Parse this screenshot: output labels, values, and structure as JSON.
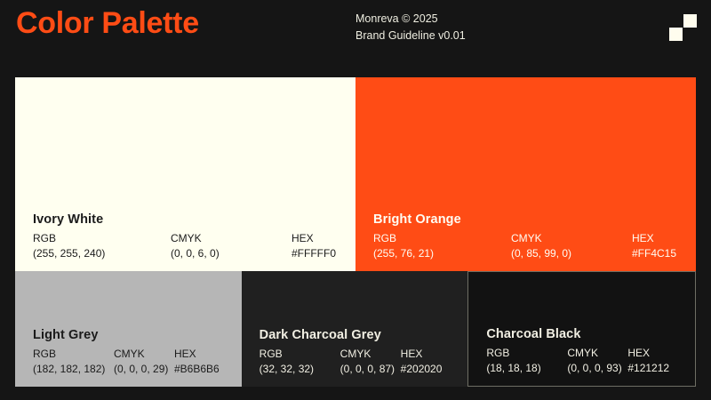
{
  "page": {
    "background": "#151515",
    "title": "Color Palette",
    "title_color": "#FF4C15",
    "brand_line1": "Monreva © 2025",
    "brand_line2": "Brand Guideline v0.01",
    "logo_square_color": "#FFFDEE"
  },
  "labels": {
    "rgb": "RGB",
    "cmyk": "CMYK",
    "hex": "HEX"
  },
  "palette": {
    "swatches": [
      {
        "name": "Ivory White",
        "rgb": "(255, 255, 240)",
        "cmyk": "(0, 0, 6, 0)",
        "hex": "#FFFFF0",
        "background": "#FFFFF0",
        "text_color": "#1B1B1B"
      },
      {
        "name": "Bright Orange",
        "rgb": "(255, 76, 21)",
        "cmyk": "(0, 85, 99, 0)",
        "hex": "#FF4C15",
        "background": "#FF4C15",
        "text_color": "#FFFDF4"
      },
      {
        "name": "Light Grey",
        "rgb": "(182, 182, 182)",
        "cmyk": "(0, 0, 0, 29)",
        "hex": "#B6B6B6",
        "background": "#B6B6B6",
        "text_color": "#1B1B1B"
      },
      {
        "name": "Dark Charcoal Grey",
        "rgb": "(32, 32, 32)",
        "cmyk": "(0, 0, 0, 87)",
        "hex": "#202020",
        "background": "#202020",
        "text_color": "#F1EFE3"
      },
      {
        "name": "Charcoal Black",
        "rgb": "(18, 18, 18)",
        "cmyk": "(0, 0, 0, 93)",
        "hex": "#121212",
        "background": "#121212",
        "text_color": "#F1EFE3",
        "border_color": "#6E6E64"
      }
    ]
  }
}
